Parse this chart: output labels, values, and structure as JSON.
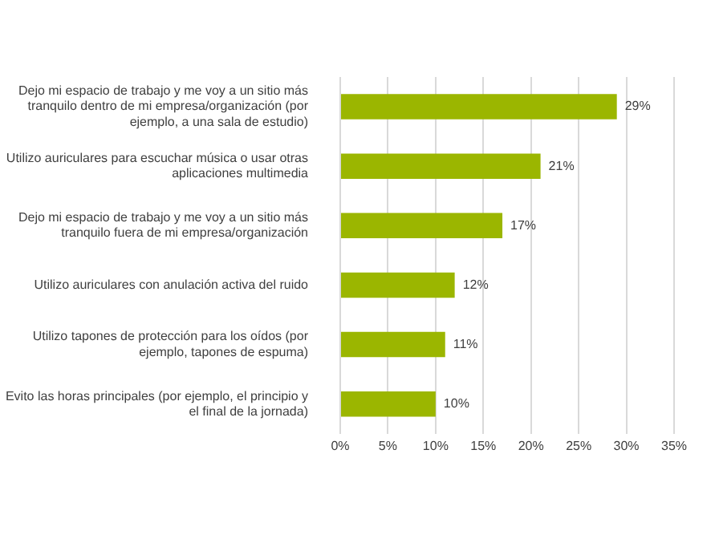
{
  "chart_data": {
    "type": "bar",
    "orientation": "horizontal",
    "categories": [
      "Dejo mi espacio de trabajo y me voy a un sitio más tranquilo dentro de mi empresa/organización (por ejemplo, a una sala de estudio)",
      "Utilizo auriculares para escuchar música o usar otras aplicaciones multimedia",
      "Dejo mi espacio de trabajo y me voy a un sitio más tranquilo fuera de mi empresa/organización",
      "Utilizo auriculares con anulación activa del ruido",
      "Utilizo tapones de protección para los oídos (por ejemplo, tapones de espuma)",
      "Evito las horas principales (por ejemplo, el principio y el final de la jornada)"
    ],
    "values": [
      29,
      21,
      17,
      12,
      11,
      10
    ],
    "value_labels": [
      "29%",
      "21%",
      "17%",
      "12%",
      "11%",
      "10%"
    ],
    "color": "#9bb600",
    "xlim": [
      0,
      35
    ],
    "xticks": [
      {
        "value": 0,
        "label": "0%"
      },
      {
        "value": 5,
        "label": "5%"
      },
      {
        "value": 10,
        "label": "10%"
      },
      {
        "value": 15,
        "label": "15%"
      },
      {
        "value": 20,
        "label": "20%"
      },
      {
        "value": 25,
        "label": "25%"
      },
      {
        "value": 30,
        "label": "30%"
      },
      {
        "value": 35,
        "label": "35%"
      }
    ],
    "grid": "x"
  }
}
